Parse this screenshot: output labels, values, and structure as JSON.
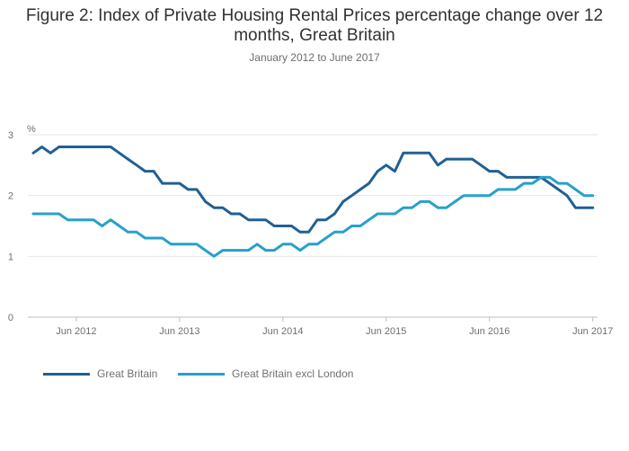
{
  "title": "Figure 2: Index of Private Housing Rental Prices percentage change over 12 months, Great Britain",
  "subtitle": "January 2012 to June 2017",
  "colors": {
    "gb": "#206095",
    "excl": "#27a0cc",
    "grid": "#e6e6e6",
    "axis": "#bfbfbf"
  },
  "chart_data": {
    "type": "line",
    "ylabel": "%",
    "ylim": [
      0,
      3
    ],
    "yticks": [
      "0",
      "1",
      "2",
      "3"
    ],
    "xtick_labels": [
      "Jun 2012",
      "Jun 2013",
      "Jun 2014",
      "Jun 2015",
      "Jun 2016",
      "Jun 2017"
    ],
    "x": [
      "Jan 2012",
      "Feb 2012",
      "Mar 2012",
      "Apr 2012",
      "May 2012",
      "Jun 2012",
      "Jul 2012",
      "Aug 2012",
      "Sep 2012",
      "Oct 2012",
      "Nov 2012",
      "Dec 2012",
      "Jan 2013",
      "Feb 2013",
      "Mar 2013",
      "Apr 2013",
      "May 2013",
      "Jun 2013",
      "Jul 2013",
      "Aug 2013",
      "Sep 2013",
      "Oct 2013",
      "Nov 2013",
      "Dec 2013",
      "Jan 2014",
      "Feb 2014",
      "Mar 2014",
      "Apr 2014",
      "May 2014",
      "Jun 2014",
      "Jul 2014",
      "Aug 2014",
      "Sep 2014",
      "Oct 2014",
      "Nov 2014",
      "Dec 2014",
      "Jan 2015",
      "Feb 2015",
      "Mar 2015",
      "Apr 2015",
      "May 2015",
      "Jun 2015",
      "Jul 2015",
      "Aug 2015",
      "Sep 2015",
      "Oct 2015",
      "Nov 2015",
      "Dec 2015",
      "Jan 2016",
      "Feb 2016",
      "Mar 2016",
      "Apr 2016",
      "May 2016",
      "Jun 2016",
      "Jul 2016",
      "Aug 2016",
      "Sep 2016",
      "Oct 2016",
      "Nov 2016",
      "Dec 2016",
      "Jan 2017",
      "Feb 2017",
      "Mar 2017",
      "Apr 2017",
      "May 2017",
      "Jun 2017"
    ],
    "series": [
      {
        "name": "Great Britain",
        "values": [
          2.7,
          2.8,
          2.7,
          2.8,
          2.8,
          2.8,
          2.8,
          2.8,
          2.8,
          2.8,
          2.7,
          2.6,
          2.5,
          2.4,
          2.4,
          2.2,
          2.2,
          2.2,
          2.1,
          2.1,
          1.9,
          1.8,
          1.8,
          1.7,
          1.7,
          1.6,
          1.6,
          1.6,
          1.5,
          1.5,
          1.5,
          1.4,
          1.4,
          1.6,
          1.6,
          1.7,
          1.9,
          2.0,
          2.1,
          2.2,
          2.4,
          2.5,
          2.4,
          2.7,
          2.7,
          2.7,
          2.7,
          2.5,
          2.6,
          2.6,
          2.6,
          2.6,
          2.5,
          2.4,
          2.4,
          2.3,
          2.3,
          2.3,
          2.3,
          2.3,
          2.2,
          2.1,
          2.0,
          1.8,
          1.8,
          1.8
        ]
      },
      {
        "name": "Great Britain excl London",
        "values": [
          1.7,
          1.7,
          1.7,
          1.7,
          1.6,
          1.6,
          1.6,
          1.6,
          1.5,
          1.6,
          1.5,
          1.4,
          1.4,
          1.3,
          1.3,
          1.3,
          1.2,
          1.2,
          1.2,
          1.2,
          1.1,
          1.0,
          1.1,
          1.1,
          1.1,
          1.1,
          1.2,
          1.1,
          1.1,
          1.2,
          1.2,
          1.1,
          1.2,
          1.2,
          1.3,
          1.4,
          1.4,
          1.5,
          1.5,
          1.6,
          1.7,
          1.7,
          1.7,
          1.8,
          1.8,
          1.9,
          1.9,
          1.8,
          1.8,
          1.9,
          2.0,
          2.0,
          2.0,
          2.0,
          2.1,
          2.1,
          2.1,
          2.2,
          2.2,
          2.3,
          2.3,
          2.2,
          2.2,
          2.1,
          2.0,
          2.0
        ]
      }
    ],
    "grid": true,
    "legend": "bottom-left"
  }
}
